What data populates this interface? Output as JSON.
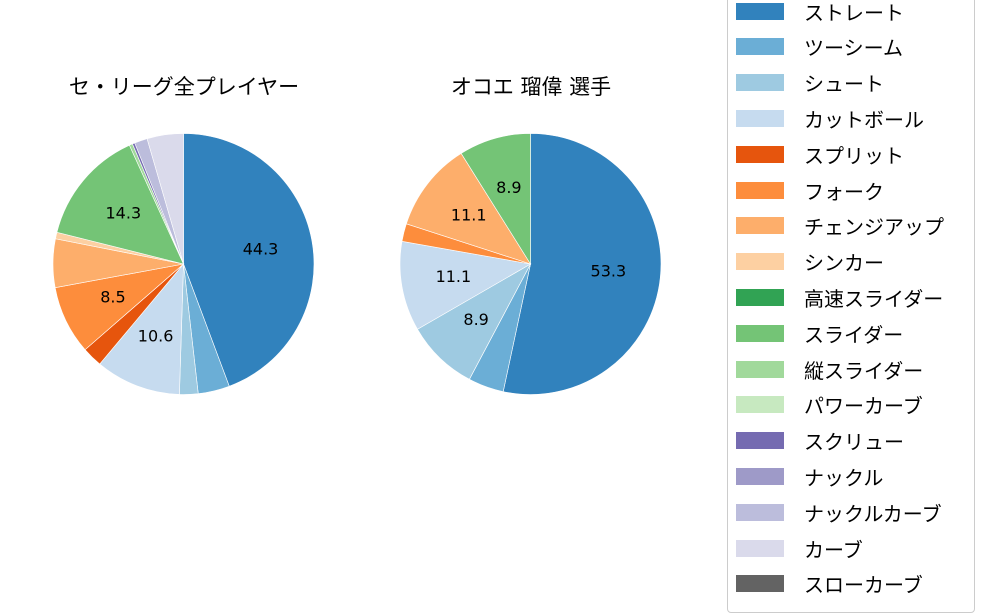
{
  "chart_data": [
    {
      "type": "pie",
      "title": "セ・リーグ全プレイヤー",
      "start_angle": 90,
      "direction": "clockwise",
      "categories": [
        "ストレート",
        "ツーシーム",
        "シュート",
        "カットボール",
        "スプリット",
        "フォーク",
        "チェンジアップ",
        "シンカー",
        "スライダー",
        "縦スライダー",
        "スクリュー",
        "ナックルカーブ",
        "カーブ"
      ],
      "values": [
        44.3,
        3.9,
        2.3,
        10.6,
        2.5,
        8.5,
        6.0,
        0.8,
        14.3,
        0.4,
        0.3,
        1.6,
        4.5
      ],
      "labels_shown": [
        "44.3",
        "",
        "",
        "10.6",
        "",
        "8.5",
        "",
        "",
        "14.3",
        "",
        "",
        "",
        ""
      ]
    },
    {
      "type": "pie",
      "title": "オコエ 瑠偉  選手",
      "start_angle": 90,
      "direction": "clockwise",
      "categories": [
        "ストレート",
        "ツーシーム",
        "シュート",
        "カットボール",
        "フォーク",
        "チェンジアップ",
        "スライダー"
      ],
      "values": [
        53.3,
        4.4,
        8.9,
        11.1,
        2.2,
        11.1,
        8.9
      ],
      "labels_shown": [
        "53.3",
        "",
        "8.9",
        "11.1",
        "",
        "11.1",
        "8.9"
      ]
    }
  ],
  "legend": {
    "position": "right",
    "items": [
      {
        "label": "ストレート",
        "color": "#3182bd"
      },
      {
        "label": "ツーシーム",
        "color": "#6baed6"
      },
      {
        "label": "シュート",
        "color": "#9ecae1"
      },
      {
        "label": "カットボール",
        "color": "#c6dbef"
      },
      {
        "label": "スプリット",
        "color": "#e6550d"
      },
      {
        "label": "フォーク",
        "color": "#fd8d3c"
      },
      {
        "label": "チェンジアップ",
        "color": "#fdae6b"
      },
      {
        "label": "シンカー",
        "color": "#fdd0a2"
      },
      {
        "label": "高速スライダー",
        "color": "#31a354"
      },
      {
        "label": "スライダー",
        "color": "#74c476"
      },
      {
        "label": "縦スライダー",
        "color": "#a1d99b"
      },
      {
        "label": "パワーカーブ",
        "color": "#c7e9c0"
      },
      {
        "label": "スクリュー",
        "color": "#756bb1"
      },
      {
        "label": "ナックル",
        "color": "#9e9ac8"
      },
      {
        "label": "ナックルカーブ",
        "color": "#bcbddc"
      },
      {
        "label": "カーブ",
        "color": "#dadaeb"
      },
      {
        "label": "スローカーブ",
        "color": "#636363"
      }
    ]
  }
}
